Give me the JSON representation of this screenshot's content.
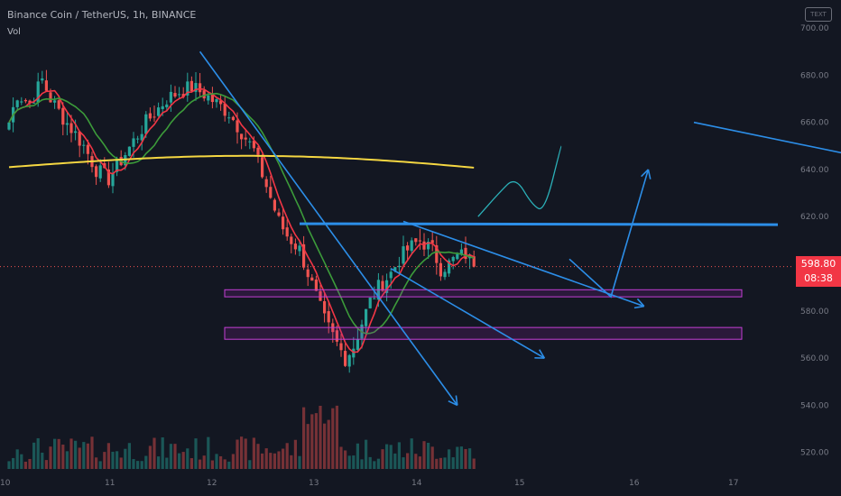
{
  "header": {
    "title": "Binance Coin / TetherUS, 1h, BINANCE",
    "vol_label": "Vol",
    "logo_text": "TEXT"
  },
  "price_tag": {
    "price": "598.80",
    "countdown": "08:38",
    "color": "#f23645"
  },
  "colors": {
    "background": "#131722",
    "up": "#26a69a",
    "down": "#ef5350",
    "ma_fast": "#f23645",
    "ma_mid": "#3c9b3a",
    "ma_slow": "#f5d742",
    "drawing": "#2c8ee8",
    "zone": "#c53fd6",
    "projection": "#2bb0b8"
  },
  "chart_data": {
    "type": "candlestick",
    "title": "Binance Coin / TetherUS, 1h, BINANCE",
    "ylim": [
      513,
      705
    ],
    "y_ticks": [
      "700.00",
      "680.00",
      "660.00",
      "640.00",
      "620.00",
      "580.00",
      "560.00",
      "540.00",
      "520.00"
    ],
    "x_ticks": [
      "10",
      "11",
      "12",
      "13",
      "14",
      "15",
      "16",
      "17"
    ],
    "last_price": 598.8,
    "price_path": [
      [
        0,
        660
      ],
      [
        2,
        672
      ],
      [
        5,
        668
      ],
      [
        8,
        678
      ],
      [
        10,
        670
      ],
      [
        13,
        662
      ],
      [
        16,
        655
      ],
      [
        18,
        650
      ],
      [
        21,
        640
      ],
      [
        24,
        636
      ],
      [
        27,
        644
      ],
      [
        30,
        652
      ],
      [
        33,
        660
      ],
      [
        36,
        666
      ],
      [
        38,
        670
      ],
      [
        41,
        673
      ],
      [
        44,
        675
      ],
      [
        47,
        672
      ],
      [
        50,
        668
      ],
      [
        53,
        664
      ],
      [
        56,
        656
      ],
      [
        59,
        648
      ],
      [
        61,
        638
      ],
      [
        63,
        628
      ],
      [
        65,
        618
      ],
      [
        67,
        612
      ],
      [
        70,
        606
      ],
      [
        72,
        596
      ],
      [
        74,
        586
      ],
      [
        76,
        576
      ],
      [
        79,
        566
      ],
      [
        81,
        560
      ],
      [
        83,
        565
      ],
      [
        85,
        575
      ],
      [
        87,
        584
      ],
      [
        89,
        590
      ],
      [
        92,
        596
      ],
      [
        94,
        602
      ],
      [
        96,
        606
      ],
      [
        99,
        610
      ],
      [
        102,
        606
      ],
      [
        104,
        598
      ],
      [
        106,
        600
      ],
      [
        108,
        603
      ],
      [
        110,
        604
      ],
      [
        112,
        598.8
      ]
    ],
    "moving_averages": [
      {
        "window": 5,
        "color": "#f23645"
      },
      {
        "window": 12,
        "color": "#3c9b3a"
      },
      {
        "window": 200,
        "color": "#f5d742"
      }
    ],
    "annotations": {
      "resistance": 617,
      "support_zones": [
        [
          586,
          589
        ],
        [
          568,
          573
        ]
      ],
      "trendlines": [
        [
          [
            46,
            690
          ],
          [
            108,
            540
          ]
        ],
        [
          [
            95,
            618
          ],
          [
            153,
            582
          ]
        ],
        [
          [
            92,
            598
          ],
          [
            129,
            560
          ]
        ],
        [
          [
            165,
            660
          ],
          [
            220,
            640
          ]
        ]
      ],
      "projection_path": [
        [
          113,
          620
        ],
        [
          118,
          630
        ],
        [
          122,
          637
        ],
        [
          126,
          625
        ],
        [
          129,
          622
        ],
        [
          133,
          650
        ]
      ],
      "projection_arrow": [
        [
          135,
          602
        ],
        [
          145,
          586
        ],
        [
          154,
          640
        ]
      ]
    }
  }
}
